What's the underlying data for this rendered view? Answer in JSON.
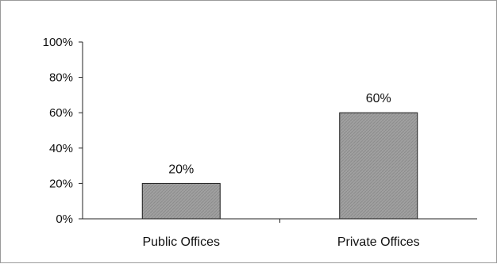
{
  "chart_data": {
    "type": "bar",
    "categories": [
      "Public Offices",
      "Private Offices"
    ],
    "values": [
      20,
      60
    ],
    "value_labels": [
      "20%",
      "60%"
    ],
    "y_ticks": [
      "0%",
      "20%",
      "40%",
      "60%",
      "80%",
      "100%"
    ],
    "ylim": [
      0,
      100
    ],
    "title": "",
    "xlabel": "",
    "ylabel": "",
    "grid": false,
    "legend": "none",
    "bar_color": "#9c9c9c",
    "bar_edge_color": "#1a1a1a"
  }
}
